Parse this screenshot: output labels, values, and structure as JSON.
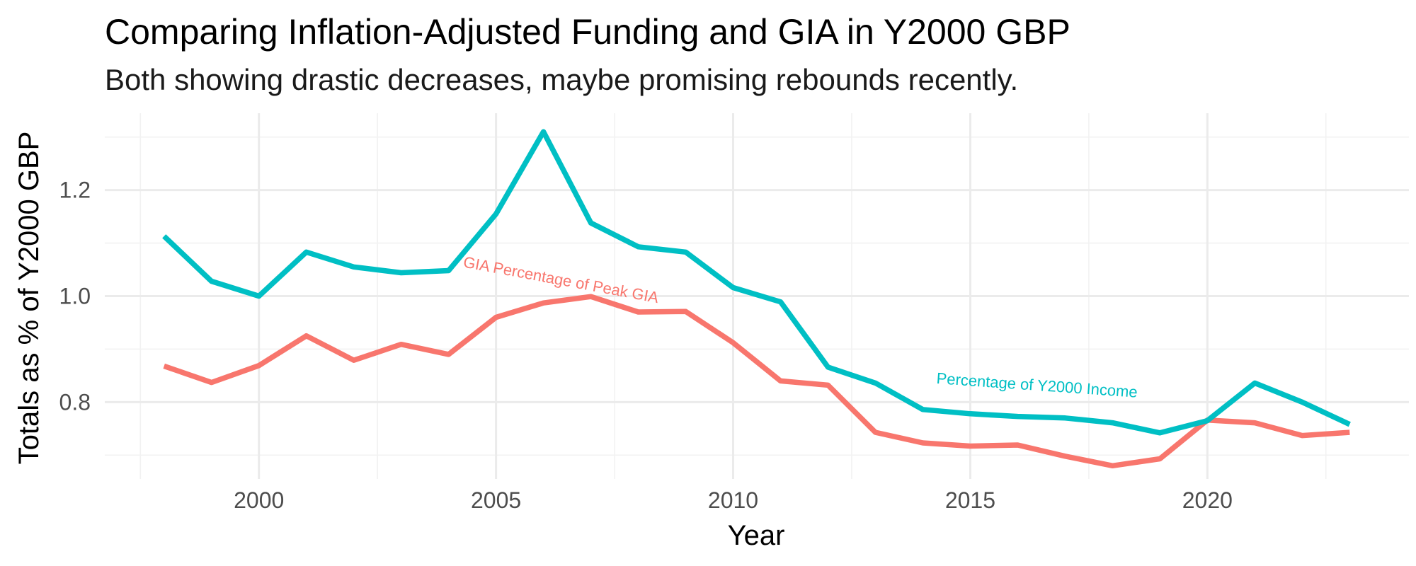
{
  "chart_data": {
    "type": "line",
    "title": "Comparing Inflation-Adjusted Funding and GIA in Y2000 GBP",
    "subtitle": "Both showing drastic decreases, maybe promising rebounds recently.",
    "xlabel": "Year",
    "ylabel": "Totals as % of Y2000 GBP",
    "xlim": [
      1996.75,
      2024.25
    ],
    "ylim": [
      0.655,
      1.345
    ],
    "x_ticks": [
      2000,
      2005,
      2010,
      2015,
      2020
    ],
    "x_tick_labels": [
      "2000",
      "2005",
      "2010",
      "2015",
      "2020"
    ],
    "y_ticks": [
      0.8,
      1.0,
      1.2
    ],
    "y_tick_labels": [
      "0.8",
      "1.0",
      "1.2"
    ],
    "grid": true,
    "legend": "none",
    "x": [
      1998,
      1999,
      2000,
      2001,
      2002,
      2003,
      2004,
      2005,
      2006,
      2007,
      2008,
      2009,
      2010,
      2011,
      2012,
      2013,
      2014,
      2015,
      2016,
      2017,
      2018,
      2019,
      2020,
      2021,
      2022,
      2023
    ],
    "series": [
      {
        "color": "#00BFC4",
        "label": "Percentage of Y2000 Income",
        "values": [
          1.113,
          1.028,
          1.0,
          1.083,
          1.055,
          1.044,
          1.048,
          1.155,
          1.31,
          1.138,
          1.093,
          1.083,
          1.016,
          0.989,
          0.866,
          0.836,
          0.786,
          0.778,
          0.773,
          0.77,
          0.761,
          0.742,
          0.765,
          0.836,
          0.8,
          0.758
        ]
      },
      {
        "color": "#F8766D",
        "label": "GIA Percentage of Peak GIA",
        "values": [
          0.868,
          0.837,
          0.869,
          0.925,
          0.879,
          0.909,
          0.89,
          0.96,
          0.987,
          0.999,
          0.97,
          0.971,
          0.912,
          0.84,
          0.832,
          0.743,
          0.723,
          0.717,
          0.719,
          0.698,
          0.68,
          0.693,
          0.766,
          0.761,
          0.737,
          0.743
        ]
      }
    ]
  }
}
